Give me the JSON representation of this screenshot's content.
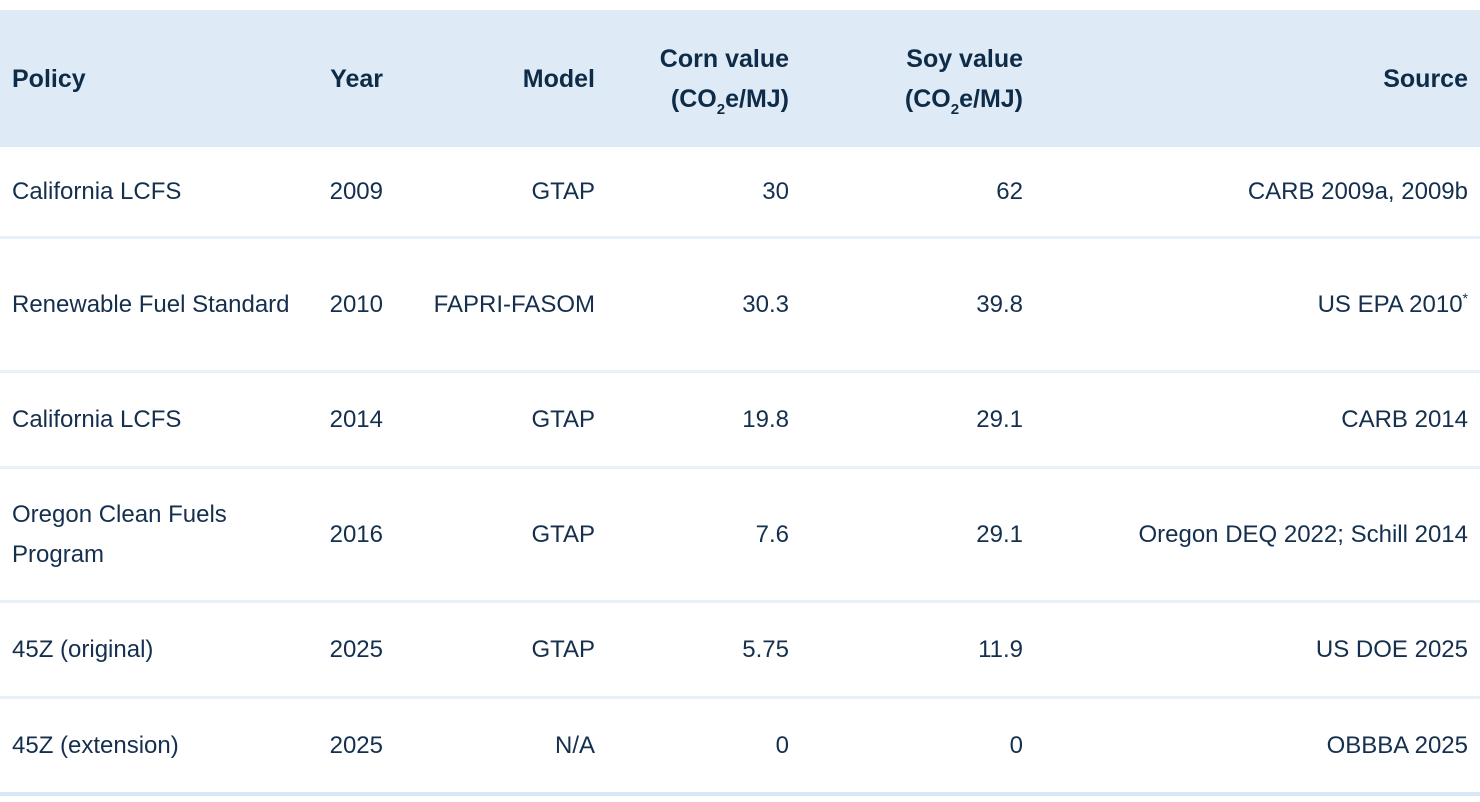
{
  "chart_data": {
    "type": "table",
    "columns": [
      "Policy",
      "Year",
      "Model",
      "Corn value (CO2e/MJ)",
      "Soy value (CO2e/MJ)",
      "Source"
    ],
    "rows": [
      {
        "policy": "California LCFS",
        "year": "2009",
        "model": "GTAP",
        "corn_value": "30",
        "soy_value": "62",
        "source": "CARB 2009a, 2009b",
        "source_footnote": ""
      },
      {
        "policy": "Renewable Fuel Standard",
        "year": "2010",
        "model": "FAPRI-FASOM",
        "corn_value": "30.3",
        "soy_value": "39.8",
        "source": "US EPA 2010",
        "source_footnote": "*"
      },
      {
        "policy": "California LCFS",
        "year": "2014",
        "model": "GTAP",
        "corn_value": "19.8",
        "soy_value": "29.1",
        "source": "CARB 2014",
        "source_footnote": ""
      },
      {
        "policy": "Oregon Clean Fuels Program",
        "year": "2016",
        "model": "GTAP",
        "corn_value": "7.6",
        "soy_value": "29.1",
        "source": "Oregon DEQ 2022; Schill 2014",
        "source_footnote": ""
      },
      {
        "policy": "45Z (original)",
        "year": "2025",
        "model": "GTAP",
        "corn_value": "5.75",
        "soy_value": "11.9",
        "source": "US DOE 2025",
        "source_footnote": ""
      },
      {
        "policy": "45Z (extension)",
        "year": "2025",
        "model": "N/A",
        "corn_value": "0",
        "soy_value": "0",
        "source": "OBBBA 2025",
        "source_footnote": ""
      }
    ],
    "layout": {
      "header_background": "#deebf7",
      "text_color": "#152f4e",
      "divider_color": "#e8f1fb",
      "numeric_alignment": "right"
    }
  },
  "header": {
    "policy": "Policy",
    "year": "Year",
    "model": "Model",
    "corn_line1": "Corn value",
    "soy_line1": "Soy value",
    "unit_pre": "(CO",
    "unit_sub": "2",
    "unit_post": "e/MJ)",
    "source": "Source"
  }
}
